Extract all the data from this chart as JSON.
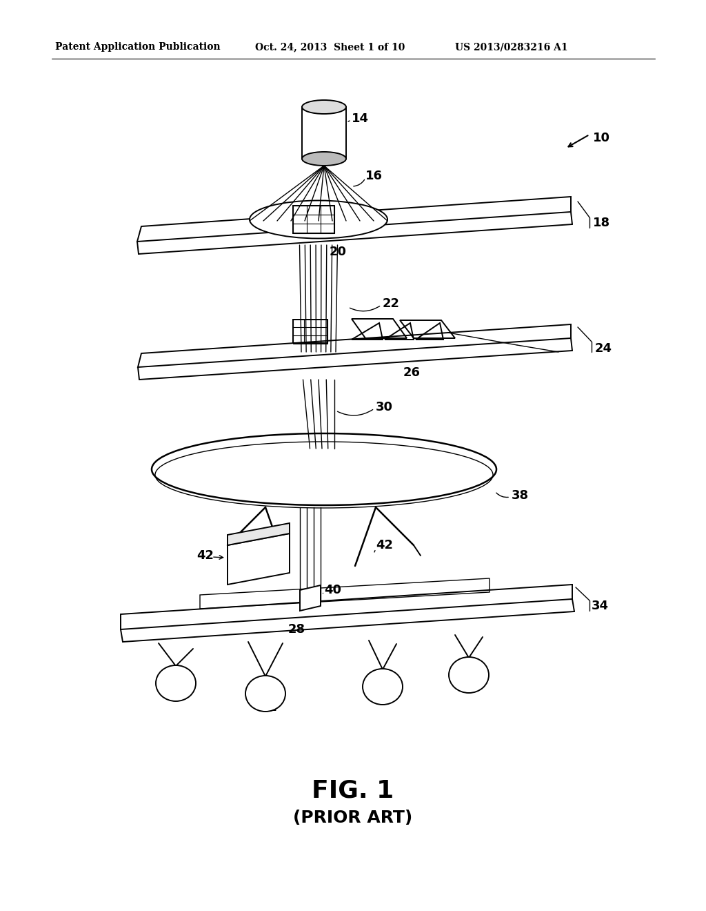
{
  "bg_color": "#ffffff",
  "header_left": "Patent Application Publication",
  "header_mid": "Oct. 24, 2013  Sheet 1 of 10",
  "header_right": "US 2013/0283216 A1",
  "fig_label": "FIG. 1",
  "fig_sublabel": "(PRIOR ART)"
}
